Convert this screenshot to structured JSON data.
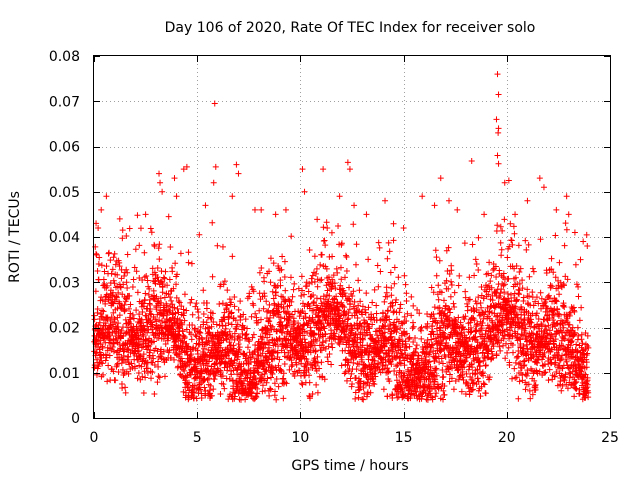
{
  "chart_data": {
    "type": "scatter",
    "title": "Day 106 of 2020, Rate Of TEC Index for receiver solo",
    "xlabel": "GPS time / hours",
    "ylabel": "ROTI / TECUs",
    "xlim": [
      0,
      25
    ],
    "ylim": [
      0,
      0.08
    ],
    "xticks": [
      "0",
      "5",
      "10",
      "15",
      "20",
      "25"
    ],
    "yticks": [
      "0",
      "0.01",
      "0.02",
      "0.03",
      "0.04",
      "0.05",
      "0.06",
      "0.07",
      "0.08"
    ],
    "grid": true,
    "marker": "+",
    "color": "#ff0000",
    "series": [
      {
        "name": "ROTI",
        "points": [
          [
            0.1,
            0.043
          ],
          [
            0.2,
            0.042
          ],
          [
            0.35,
            0.046
          ],
          [
            0.6,
            0.049
          ],
          [
            1.25,
            0.044
          ],
          [
            2.5,
            0.045
          ],
          [
            3.15,
            0.054
          ],
          [
            3.2,
            0.052
          ],
          [
            3.3,
            0.05
          ],
          [
            3.9,
            0.053
          ],
          [
            4.0,
            0.049
          ],
          [
            4.35,
            0.055
          ],
          [
            4.5,
            0.0555
          ],
          [
            5.4,
            0.047
          ],
          [
            5.85,
            0.0695
          ],
          [
            5.9,
            0.0555
          ],
          [
            5.8,
            0.052
          ],
          [
            6.7,
            0.049
          ],
          [
            6.9,
            0.056
          ],
          [
            7.0,
            0.054
          ],
          [
            7.8,
            0.046
          ],
          [
            8.1,
            0.046
          ],
          [
            8.8,
            0.045
          ],
          [
            9.3,
            0.046
          ],
          [
            10.1,
            0.055
          ],
          [
            10.2,
            0.05
          ],
          [
            11.1,
            0.055
          ],
          [
            11.9,
            0.049
          ],
          [
            12.3,
            0.0565
          ],
          [
            12.4,
            0.055
          ],
          [
            12.6,
            0.047
          ],
          [
            13.2,
            0.045
          ],
          [
            14.1,
            0.048
          ],
          [
            15.0,
            0.042
          ],
          [
            15.9,
            0.049
          ],
          [
            16.5,
            0.047
          ],
          [
            16.8,
            0.053
          ],
          [
            17.2,
            0.048
          ],
          [
            17.6,
            0.046
          ],
          [
            18.3,
            0.0568
          ],
          [
            18.9,
            0.045
          ],
          [
            19.55,
            0.076
          ],
          [
            19.6,
            0.0715
          ],
          [
            19.5,
            0.066
          ],
          [
            19.6,
            0.064
          ],
          [
            19.58,
            0.063
          ],
          [
            19.55,
            0.058
          ],
          [
            19.6,
            0.0562
          ],
          [
            19.9,
            0.052
          ],
          [
            20.1,
            0.0525
          ],
          [
            20.4,
            0.045
          ],
          [
            21.0,
            0.048
          ],
          [
            21.6,
            0.053
          ],
          [
            21.8,
            0.051
          ],
          [
            22.4,
            0.046
          ],
          [
            22.9,
            0.049
          ],
          [
            23.0,
            0.045
          ],
          [
            23.3,
            0.041
          ],
          [
            23.7,
            0.039
          ],
          [
            23.9,
            0.038
          ]
        ]
      }
    ]
  }
}
